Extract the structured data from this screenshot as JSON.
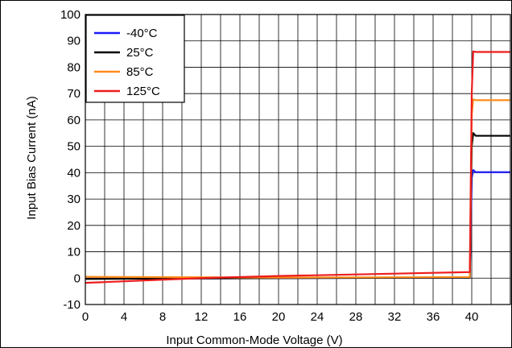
{
  "chart_data": {
    "type": "line",
    "xlabel": "Input Common-Mode Voltage (V)",
    "ylabel": "Input Bias Current (nA)",
    "xlim": [
      0,
      44
    ],
    "ylim": [
      -10,
      100
    ],
    "xticks": [
      "0",
      "4",
      "8",
      "12",
      "16",
      "20",
      "24",
      "28",
      "32",
      "36",
      "40"
    ],
    "xtick_values": [
      0,
      4,
      8,
      12,
      16,
      20,
      24,
      28,
      32,
      36,
      40
    ],
    "yticks": [
      "100",
      "90",
      "80",
      "70",
      "60",
      "50",
      "40",
      "30",
      "20",
      "10",
      "0",
      "-10"
    ],
    "ytick_values": [
      100,
      90,
      80,
      70,
      60,
      50,
      40,
      30,
      20,
      10,
      0,
      -10
    ],
    "grid_x_step": 2,
    "grid_y_step": 10,
    "legend_position": "top-left",
    "series": [
      {
        "name": "-40°C",
        "color": "#1a1aff",
        "points": [
          [
            0,
            -0.2
          ],
          [
            20,
            0
          ],
          [
            39.8,
            0.2
          ],
          [
            40.0,
            38
          ],
          [
            40.15,
            41
          ],
          [
            40.4,
            40.2
          ],
          [
            44,
            40.2
          ]
        ]
      },
      {
        "name": "25°C",
        "color": "#000000",
        "points": [
          [
            0,
            -0.3
          ],
          [
            20,
            0
          ],
          [
            39.8,
            0.2
          ],
          [
            40.0,
            50
          ],
          [
            40.15,
            55
          ],
          [
            40.4,
            54
          ],
          [
            44,
            54
          ]
        ]
      },
      {
        "name": "85°C",
        "color": "#ff8c1a",
        "points": [
          [
            0,
            0.5
          ],
          [
            20,
            0.2
          ],
          [
            39.8,
            0.4
          ],
          [
            40.0,
            62
          ],
          [
            40.15,
            67.8
          ],
          [
            40.4,
            67.5
          ],
          [
            44,
            67.5
          ]
        ]
      },
      {
        "name": "125°C",
        "color": "#ee1c1c",
        "points": [
          [
            0,
            -1.8
          ],
          [
            12,
            0
          ],
          [
            20,
            0.8
          ],
          [
            39.8,
            2.3
          ],
          [
            40.0,
            70
          ],
          [
            40.15,
            86
          ],
          [
            40.4,
            85.8
          ],
          [
            44,
            85.8
          ]
        ]
      }
    ]
  }
}
